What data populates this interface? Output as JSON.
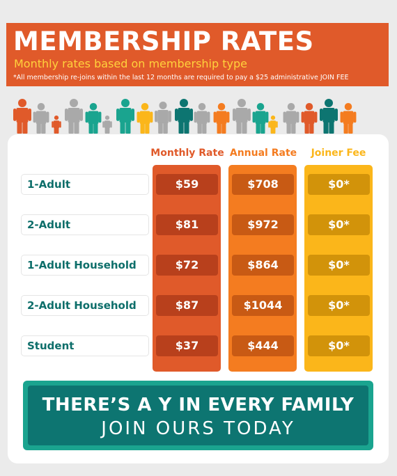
{
  "header": {
    "title": "MEMBERSHIP RATES",
    "subtitle": "Monthly rates based on membership type",
    "note": "*All membership re-joins within the last 12 months are required to pay a $25 administrative JOIN FEE"
  },
  "colors": {
    "banner": "#e05a2a",
    "subtitle": "#ffd23c",
    "monthly_col": "#e05a2a",
    "monthly_cell": "#b8401c",
    "annual_col": "#f47c20",
    "annual_cell": "#c85a14",
    "joiner_col": "#fbb61a",
    "joiner_cell": "#d2930a",
    "label_text": "#0d6e6a",
    "footer_outer": "#1aa48f",
    "footer_inner": "#0d7571"
  },
  "table": {
    "columns": [
      "Monthly Rate",
      "Annual Rate",
      "Joiner Fee"
    ],
    "rows": [
      {
        "label": "1-Adult",
        "monthly": "$59",
        "annual": "$708",
        "joiner": "$0*"
      },
      {
        "label": "2-Adult",
        "monthly": "$81",
        "annual": "$972",
        "joiner": "$0*"
      },
      {
        "label": "1-Adult Household",
        "monthly": "$72",
        "annual": "$864",
        "joiner": "$0*"
      },
      {
        "label": "2-Adult Household",
        "monthly": "$87",
        "annual": "$1044",
        "joiner": "$0*"
      },
      {
        "label": "Student",
        "monthly": "$37",
        "annual": "$444",
        "joiner": "$0*"
      }
    ]
  },
  "people_icon": "family-people-icon",
  "footer": {
    "line1": "THERE’S A Y IN EVERY FAMILY",
    "line2": "JOIN OURS TODAY"
  }
}
